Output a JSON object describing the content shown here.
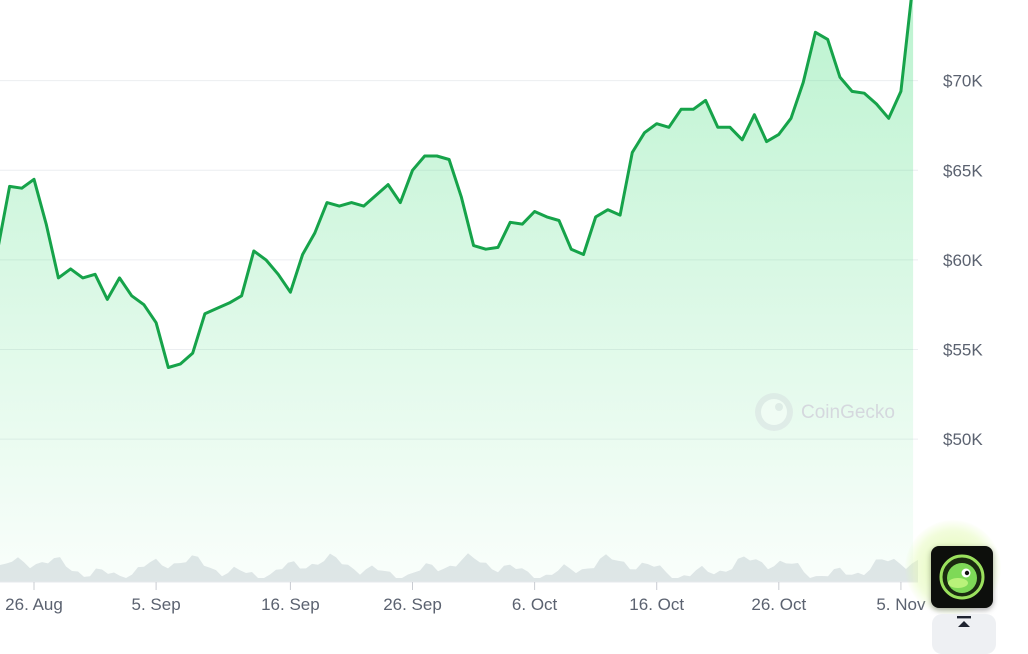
{
  "chart_data": {
    "type": "area",
    "title": "",
    "xlabel": "",
    "ylabel": "",
    "ylim": [
      47500,
      74500
    ],
    "y_ticks": [
      {
        "value": 50000,
        "label": "$50K"
      },
      {
        "value": 55000,
        "label": "$55K"
      },
      {
        "value": 60000,
        "label": "$60K"
      },
      {
        "value": 65000,
        "label": "$65K"
      },
      {
        "value": 70000,
        "label": "$70K"
      }
    ],
    "x_ticks": [
      {
        "date": "2024-08-26",
        "label": "26. Aug"
      },
      {
        "date": "2024-09-05",
        "label": "5. Sep"
      },
      {
        "date": "2024-09-16",
        "label": "16. Sep"
      },
      {
        "date": "2024-09-26",
        "label": "26. Sep"
      },
      {
        "date": "2024-10-06",
        "label": "6. Oct"
      },
      {
        "date": "2024-10-16",
        "label": "16. Oct"
      },
      {
        "date": "2024-10-26",
        "label": "26. Oct"
      },
      {
        "date": "2024-11-05",
        "label": "5. Nov"
      }
    ],
    "grid": true,
    "series": [
      {
        "color": "#16a34a",
        "points": [
          [
            "2024-08-23",
            60500
          ],
          [
            "2024-08-24",
            64100
          ],
          [
            "2024-08-25",
            64000
          ],
          [
            "2024-08-26",
            64500
          ],
          [
            "2024-08-27",
            62000
          ],
          [
            "2024-08-28",
            59000
          ],
          [
            "2024-08-29",
            59500
          ],
          [
            "2024-08-30",
            59000
          ],
          [
            "2024-08-31",
            59200
          ],
          [
            "2024-09-01",
            57800
          ],
          [
            "2024-09-02",
            59000
          ],
          [
            "2024-09-03",
            58000
          ],
          [
            "2024-09-04",
            57500
          ],
          [
            "2024-09-05",
            56500
          ],
          [
            "2024-09-06",
            54000
          ],
          [
            "2024-09-07",
            54200
          ],
          [
            "2024-09-08",
            54800
          ],
          [
            "2024-09-09",
            57000
          ],
          [
            "2024-09-10",
            57300
          ],
          [
            "2024-09-11",
            57600
          ],
          [
            "2024-09-12",
            58000
          ],
          [
            "2024-09-13",
            60500
          ],
          [
            "2024-09-14",
            60000
          ],
          [
            "2024-09-15",
            59200
          ],
          [
            "2024-09-16",
            58200
          ],
          [
            "2024-09-17",
            60300
          ],
          [
            "2024-09-18",
            61500
          ],
          [
            "2024-09-19",
            63200
          ],
          [
            "2024-09-20",
            63000
          ],
          [
            "2024-09-21",
            63200
          ],
          [
            "2024-09-22",
            63000
          ],
          [
            "2024-09-23",
            63600
          ],
          [
            "2024-09-24",
            64200
          ],
          [
            "2024-09-25",
            63200
          ],
          [
            "2024-09-26",
            65000
          ],
          [
            "2024-09-27",
            65800
          ],
          [
            "2024-09-28",
            65800
          ],
          [
            "2024-09-29",
            65600
          ],
          [
            "2024-09-30",
            63500
          ],
          [
            "2024-10-01",
            60800
          ],
          [
            "2024-10-02",
            60600
          ],
          [
            "2024-10-03",
            60700
          ],
          [
            "2024-10-04",
            62100
          ],
          [
            "2024-10-05",
            62000
          ],
          [
            "2024-10-06",
            62700
          ],
          [
            "2024-10-07",
            62400
          ],
          [
            "2024-10-08",
            62200
          ],
          [
            "2024-10-09",
            60600
          ],
          [
            "2024-10-10",
            60300
          ],
          [
            "2024-10-11",
            62400
          ],
          [
            "2024-10-12",
            62800
          ],
          [
            "2024-10-13",
            62500
          ],
          [
            "2024-10-14",
            66000
          ],
          [
            "2024-10-15",
            67100
          ],
          [
            "2024-10-16",
            67600
          ],
          [
            "2024-10-17",
            67400
          ],
          [
            "2024-10-18",
            68400
          ],
          [
            "2024-10-19",
            68400
          ],
          [
            "2024-10-20",
            68900
          ],
          [
            "2024-10-21",
            67400
          ],
          [
            "2024-10-22",
            67400
          ],
          [
            "2024-10-23",
            66700
          ],
          [
            "2024-10-24",
            68100
          ],
          [
            "2024-10-25",
            66600
          ],
          [
            "2024-10-26",
            67000
          ],
          [
            "2024-10-27",
            67900
          ],
          [
            "2024-10-28",
            69900
          ],
          [
            "2024-10-29",
            72700
          ],
          [
            "2024-10-30",
            72300
          ],
          [
            "2024-10-31",
            70200
          ],
          [
            "2024-11-01",
            69400
          ],
          [
            "2024-11-02",
            69300
          ],
          [
            "2024-11-03",
            68700
          ],
          [
            "2024-11-04",
            67900
          ],
          [
            "2024-11-05",
            69400
          ],
          [
            "2024-11-06",
            75500
          ]
        ]
      }
    ]
  },
  "watermark": {
    "text": "CoinGecko",
    "icon": "gecko-logo-icon"
  },
  "widgets": {
    "gecko_button_icon": "gecko-face-icon",
    "scroll_top_icon": "scroll-to-top-icon"
  }
}
